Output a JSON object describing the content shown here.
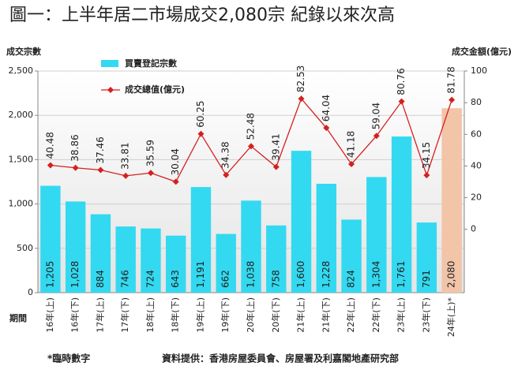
{
  "chart_data": {
    "type": "bar_line",
    "title": "圖一：上半年居二市場成交2,080宗 紀錄以來次高",
    "y_label": "成交宗數",
    "y2_label": "成交金額(億元)",
    "x_label": "期間",
    "categories": [
      "16年(上)",
      "16年(下)",
      "17年(上)",
      "17年(下)",
      "18年(上)",
      "18年(下)",
      "19年(上)",
      "19年(下)",
      "20年(上)",
      "20年(下)",
      "21年(上)",
      "21年(下)",
      "22年(上)",
      "22年(下)",
      "23年(上)",
      "23年(下)",
      "24年(上)*"
    ],
    "series": [
      {
        "name": "買賣登記宗數",
        "color": "#33d9f0",
        "colors": [
          "#33d9f0",
          "#33d9f0",
          "#33d9f0",
          "#33d9f0",
          "#33d9f0",
          "#33d9f0",
          "#33d9f0",
          "#33d9f0",
          "#33d9f0",
          "#33d9f0",
          "#33d9f0",
          "#33d9f0",
          "#33d9f0",
          "#33d9f0",
          "#33d9f0",
          "#33d9f0",
          "#f2c4a8"
        ],
        "label_colors": [
          "#ffffff",
          "#ffffff",
          "#ffffff",
          "#ffffff",
          "#ffffff",
          "#ffffff",
          "#ffffff",
          "#ffffff",
          "#ffffff",
          "#ffffff",
          "#ffffff",
          "#ffffff",
          "#ffffff",
          "#ffffff",
          "#ffffff",
          "#ffffff",
          "#3344cc"
        ],
        "values": [
          1205,
          1028,
          884,
          746,
          724,
          643,
          1191,
          662,
          1038,
          758,
          1600,
          1228,
          824,
          1304,
          1761,
          791,
          2080
        ],
        "value_labels": [
          "1,205",
          "1,028",
          "884",
          "746",
          "724",
          "643",
          "1,191",
          "662",
          "1,038",
          "758",
          "1,600",
          "1,228",
          "824",
          "1,304",
          "1,761",
          "791",
          "2,080"
        ]
      },
      {
        "name": "成交總值(億元)",
        "color": "#d42020",
        "axis": "y2",
        "label_colors": [
          "#d42020",
          "#d42020",
          "#d42020",
          "#d42020",
          "#d42020",
          "#d42020",
          "#d42020",
          "#d42020",
          "#d42020",
          "#d42020",
          "#d42020",
          "#d42020",
          "#d42020",
          "#d42020",
          "#d42020",
          "#d42020",
          "#3344cc"
        ],
        "values": [
          40.48,
          38.86,
          37.46,
          33.81,
          35.59,
          30.04,
          60.25,
          34.38,
          52.48,
          39.41,
          82.53,
          64.04,
          41.18,
          59.04,
          80.76,
          34.15,
          81.78
        ]
      }
    ],
    "ylim": [
      0,
      2500
    ],
    "yticks": [
      0,
      500,
      {
        "value": 1000,
        "label": "1,000"
      },
      {
        "value": 1500,
        "label": "1,500"
      },
      {
        "value": 2000,
        "label": "2,000"
      },
      {
        "value": 2500,
        "label": "2,500"
      }
    ],
    "y2lim": [
      -40,
      100
    ],
    "y2ticks": [
      0,
      20,
      40,
      60,
      80,
      100
    ],
    "grid": true,
    "footnote": "*臨時數字",
    "source": "資料提供：香港房屋委員會、房屋署及利嘉閣地產研究部"
  }
}
